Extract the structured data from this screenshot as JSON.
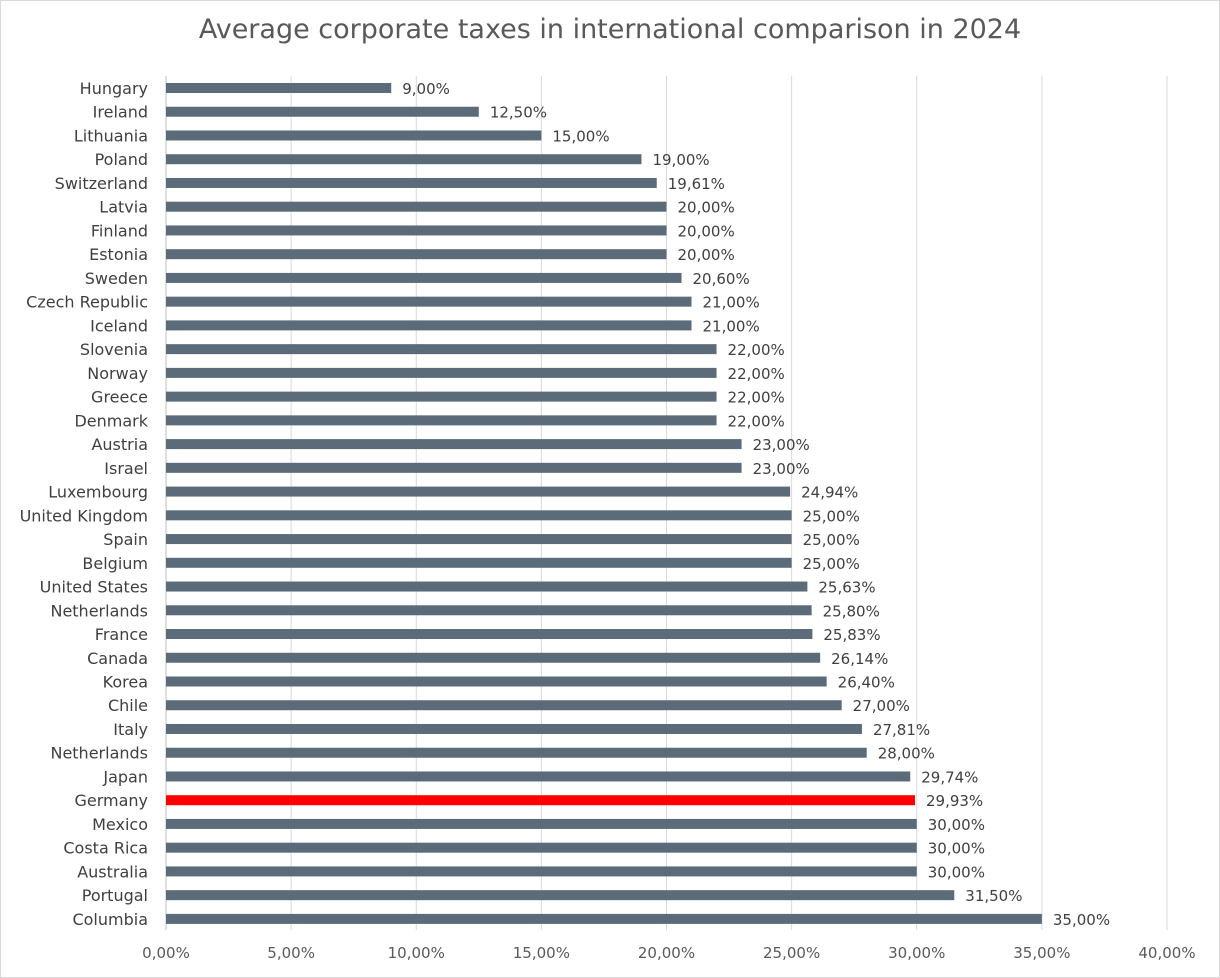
{
  "chart_data": {
    "type": "bar",
    "orientation": "horizontal",
    "title": "Average corporate taxes in international comparison in 2024",
    "xlabel": "",
    "ylabel": "",
    "xlim": [
      0,
      40
    ],
    "x_ticks": [
      "0,00%",
      "5,00%",
      "10,00%",
      "15,00%",
      "20,00%",
      "25,00%",
      "30,00%",
      "35,00%",
      "40,00%"
    ],
    "grid": "vertical",
    "legend": "none",
    "default_color": "#5b6b7a",
    "highlight_color": "#ff0000",
    "categories": [
      "Hungary",
      "Ireland",
      "Lithuania",
      "Poland",
      "Switzerland",
      "Latvia",
      "Finland",
      "Estonia",
      "Sweden",
      "Czech Republic",
      "Iceland",
      "Slovenia",
      "Norway",
      "Greece",
      "Denmark",
      "Austria",
      "Israel",
      "Luxembourg",
      "United Kingdom",
      "Spain",
      "Belgium",
      "United States",
      "Netherlands",
      "France",
      "Canada",
      "Korea",
      "Chile",
      "Italy",
      "Netherlands",
      "Japan",
      "Germany",
      "Mexico",
      "Costa Rica",
      "Australia",
      "Portugal",
      "Columbia"
    ],
    "values": [
      9.0,
      12.5,
      15.0,
      19.0,
      19.61,
      20.0,
      20.0,
      20.0,
      20.6,
      21.0,
      21.0,
      22.0,
      22.0,
      22.0,
      22.0,
      23.0,
      23.0,
      24.94,
      25.0,
      25.0,
      25.0,
      25.63,
      25.8,
      25.83,
      26.14,
      26.4,
      27.0,
      27.81,
      28.0,
      29.74,
      29.93,
      30.0,
      30.0,
      30.0,
      31.5,
      35.0
    ],
    "value_labels": [
      "9,00%",
      "12,50%",
      "15,00%",
      "19,00%",
      "19,61%",
      "20,00%",
      "20,00%",
      "20,00%",
      "20,60%",
      "21,00%",
      "21,00%",
      "22,00%",
      "22,00%",
      "22,00%",
      "22,00%",
      "23,00%",
      "23,00%",
      "24,94%",
      "25,00%",
      "25,00%",
      "25,00%",
      "25,63%",
      "25,80%",
      "25,83%",
      "26,14%",
      "26,40%",
      "27,00%",
      "27,81%",
      "28,00%",
      "29,74%",
      "29,93%",
      "30,00%",
      "30,00%",
      "30,00%",
      "31,50%",
      "35,00%"
    ],
    "highlight": [
      "Germany"
    ]
  }
}
